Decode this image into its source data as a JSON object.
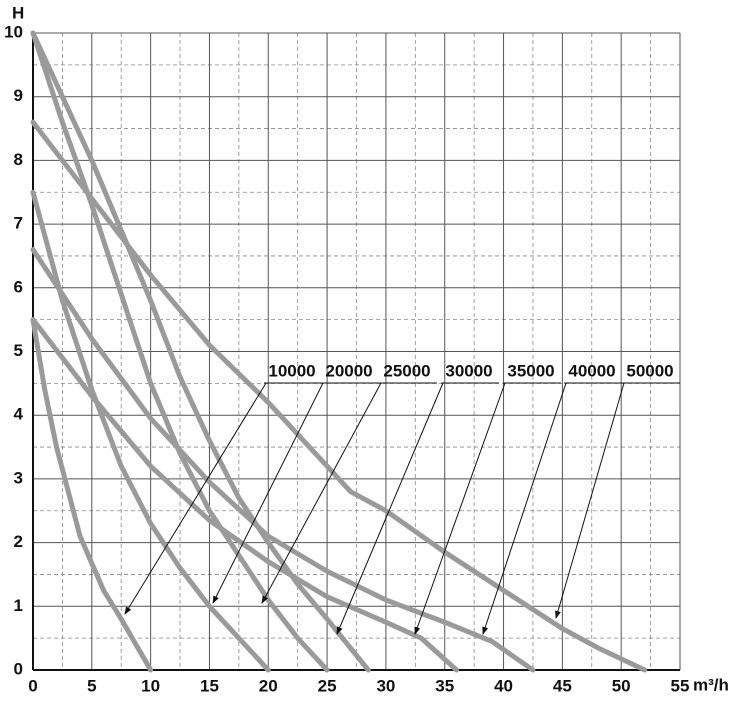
{
  "chart_data": {
    "type": "line",
    "y_label": "H",
    "x_label": "m³/h",
    "xlim": [
      0,
      55
    ],
    "xticks": [
      0,
      5,
      10,
      15,
      20,
      25,
      30,
      35,
      40,
      45,
      50,
      55
    ],
    "ylim": [
      0,
      10
    ],
    "yticks": [
      0,
      1,
      2,
      3,
      4,
      5,
      6,
      7,
      8,
      9,
      10
    ],
    "grid": true,
    "minor_grid": true,
    "series": [
      {
        "name": "10000",
        "color": "#9a9a9a",
        "x": [
          0,
          1,
          2,
          4,
          6,
          7.5,
          10
        ],
        "values": [
          5.5,
          4.4,
          3.5,
          2.1,
          1.25,
          0.8,
          0
        ]
      },
      {
        "name": "20000",
        "color": "#9a9a9a",
        "x": [
          0,
          2.5,
          5,
          7.5,
          10,
          12.5,
          15,
          17.5,
          20
        ],
        "values": [
          7.5,
          5.8,
          4.4,
          3.2,
          2.3,
          1.6,
          1.0,
          0.5,
          0
        ]
      },
      {
        "name": "25000",
        "color": "#9a9a9a",
        "x": [
          0,
          2.5,
          5,
          7.5,
          10,
          12.5,
          15,
          17.5,
          20,
          22.5,
          25
        ],
        "values": [
          10,
          8.6,
          7.3,
          5.9,
          4.5,
          3.4,
          2.5,
          1.8,
          1.1,
          0.5,
          0
        ]
      },
      {
        "name": "30000",
        "color": "#9a9a9a",
        "x": [
          0,
          2.5,
          5,
          7.5,
          10,
          12.5,
          15,
          17.5,
          20,
          22.5,
          25,
          28.5
        ],
        "values": [
          10,
          9.0,
          8.0,
          6.9,
          5.8,
          4.6,
          3.6,
          2.7,
          2.0,
          1.35,
          0.8,
          0
        ]
      },
      {
        "name": "35000",
        "color": "#9a9a9a",
        "x": [
          0,
          5,
          10,
          15,
          20,
          25,
          30,
          33,
          36
        ],
        "values": [
          5.5,
          4.3,
          3.2,
          2.35,
          1.7,
          1.15,
          0.75,
          0.5,
          0
        ]
      },
      {
        "name": "40000",
        "color": "#9a9a9a",
        "x": [
          0,
          5,
          10,
          15,
          20,
          25,
          30,
          35,
          39,
          42.5
        ],
        "values": [
          6.6,
          5.2,
          3.95,
          2.95,
          2.1,
          1.55,
          1.1,
          0.75,
          0.45,
          0
        ]
      },
      {
        "name": "50000",
        "color": "#9a9a9a",
        "x": [
          0,
          5,
          10,
          15,
          20,
          25,
          27,
          30,
          35,
          40,
          45,
          48,
          52
        ],
        "values": [
          8.6,
          7.4,
          6.2,
          5.1,
          4.2,
          3.2,
          2.8,
          2.5,
          1.85,
          1.25,
          0.65,
          0.35,
          0
        ]
      }
    ]
  }
}
